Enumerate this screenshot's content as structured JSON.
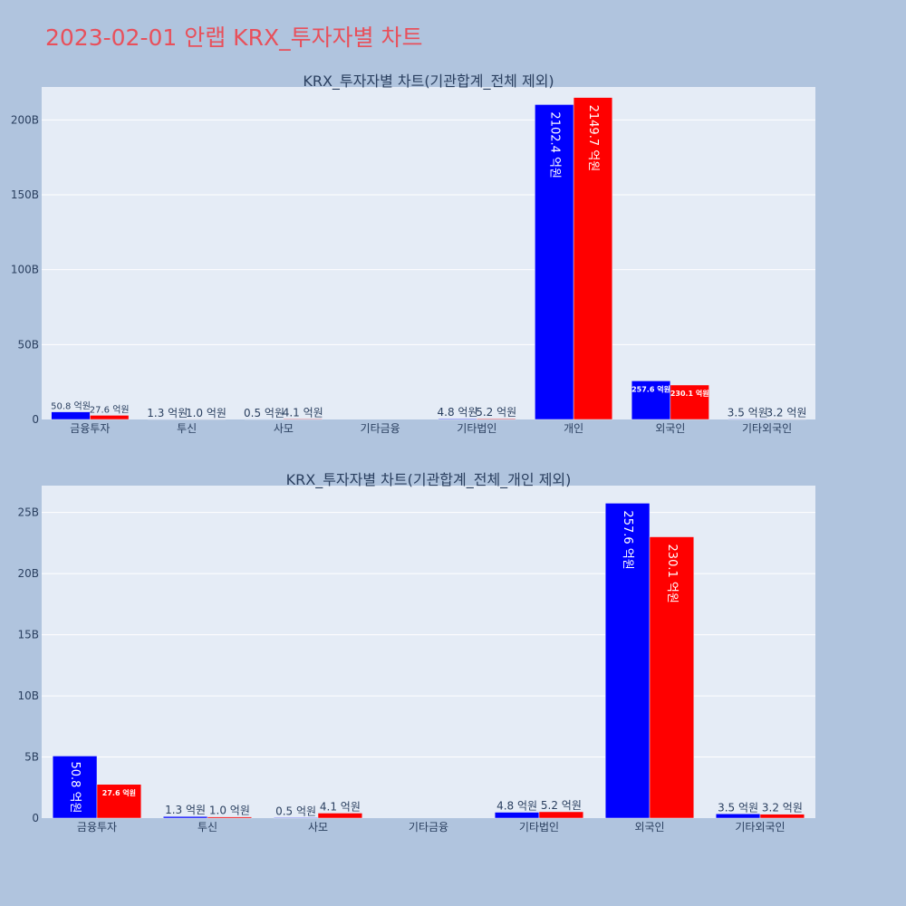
{
  "page": {
    "title": "2023-02-01 안랩 KRX_투자자별 차트"
  },
  "colors": {
    "background": "#b0c4de",
    "plot_background": "#e5ecf6",
    "title": "#e8505b",
    "series_1": "#0000ff",
    "series_2": "#ff0000"
  },
  "chart_data": [
    {
      "type": "bar",
      "title": "KRX_투자자별 차트(기관합계_전체 제외)",
      "categories": [
        "금융투자",
        "투신",
        "사모",
        "기타금융",
        "기타법인",
        "개인",
        "외국인",
        "기타외국인"
      ],
      "series": [
        {
          "color": "#0000ff",
          "values": [
            5.08,
            0.13,
            0.05,
            0,
            0.48,
            210.24,
            25.76,
            0.35
          ],
          "labels": [
            "50.8 억원",
            "1.3 억원",
            "0.5 억원",
            "",
            "4.8 억원",
            "2102.4 억원",
            "257.6 억원",
            "3.5 억원"
          ]
        },
        {
          "color": "#ff0000",
          "values": [
            2.76,
            0.1,
            0.41,
            0,
            0.52,
            214.97,
            23.01,
            0.32
          ],
          "labels": [
            "27.6 억원",
            "1.0 억원",
            "4.1 억원",
            "",
            "5.2 억원",
            "2149.7 억원",
            "230.1 억원",
            "3.2 억원"
          ]
        }
      ],
      "ylim": [
        0,
        222
      ],
      "yticks": [
        0,
        50,
        100,
        150,
        200
      ],
      "ytick_labels": [
        "0",
        "50B",
        "100B",
        "150B",
        "200B"
      ],
      "grid": true,
      "legend": "none"
    },
    {
      "type": "bar",
      "title": "KRX_투자자별 차트(기관합계_전체_개인 제외)",
      "categories": [
        "금융투자",
        "투신",
        "사모",
        "기타금융",
        "기타법인",
        "외국인",
        "기타외국인"
      ],
      "series": [
        {
          "color": "#0000ff",
          "values": [
            5.08,
            0.13,
            0.05,
            0,
            0.48,
            25.76,
            0.35
          ],
          "labels": [
            "50.8 억원",
            "1.3 억원",
            "0.5 억원",
            "",
            "4.8 억원",
            "257.6 억원",
            "3.5 억원"
          ]
        },
        {
          "color": "#ff0000",
          "values": [
            2.76,
            0.1,
            0.41,
            0,
            0.52,
            23.01,
            0.32
          ],
          "labels": [
            "27.6 억원",
            "1.0 억원",
            "4.1 억원",
            "",
            "5.2 억원",
            "230.1 억원",
            "3.2 억원"
          ]
        }
      ],
      "ylim": [
        0,
        27.2
      ],
      "yticks": [
        0,
        5,
        10,
        15,
        20,
        25
      ],
      "ytick_labels": [
        "0",
        "5B",
        "10B",
        "15B",
        "20B",
        "25B"
      ],
      "grid": true,
      "legend": "none"
    }
  ]
}
